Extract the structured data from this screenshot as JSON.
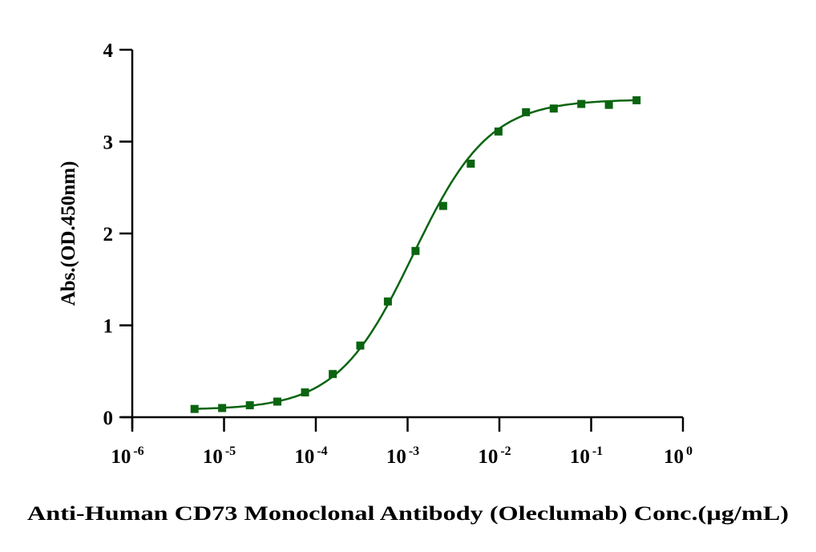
{
  "chart_data": {
    "type": "scatter",
    "title": "",
    "xlabel": "Anti-Human CD73 Monoclonal Antibody (Oleclumab) Conc.(µg/mL)",
    "ylabel": "Abs.(OD.450nm)",
    "xscale": "log",
    "xlim": [
      1e-06,
      1
    ],
    "ylim": [
      0,
      4
    ],
    "grid": false,
    "legend": "none",
    "x_ticks": [
      {
        "base": "10",
        "exp": "-6",
        "value": 1e-06
      },
      {
        "base": "10",
        "exp": "-5",
        "value": 1e-05
      },
      {
        "base": "10",
        "exp": "-4",
        "value": 0.0001
      },
      {
        "base": "10",
        "exp": "-3",
        "value": 0.001
      },
      {
        "base": "10",
        "exp": "-2",
        "value": 0.01
      },
      {
        "base": "10",
        "exp": "-1",
        "value": 0.1
      },
      {
        "base": "10",
        "exp": "0",
        "value": 1
      }
    ],
    "y_ticks": [
      "0",
      "1",
      "2",
      "3",
      "4"
    ],
    "series": [
      {
        "name": "Oleclumab",
        "color": "#0a6410",
        "marker": "square",
        "fit": "4PL sigmoid",
        "x": [
          4.77e-06,
          9.54e-06,
          1.91e-05,
          3.81e-05,
          7.63e-05,
          0.000153,
          0.000305,
          0.00061,
          0.00122,
          0.00244,
          0.00488,
          0.00977,
          0.0195,
          0.0391,
          0.0781,
          0.156,
          0.3125
        ],
        "y": [
          0.09,
          0.1,
          0.13,
          0.17,
          0.27,
          0.47,
          0.78,
          1.26,
          1.81,
          2.3,
          2.76,
          3.11,
          3.32,
          3.36,
          3.41,
          3.4,
          3.45
        ]
      }
    ]
  }
}
